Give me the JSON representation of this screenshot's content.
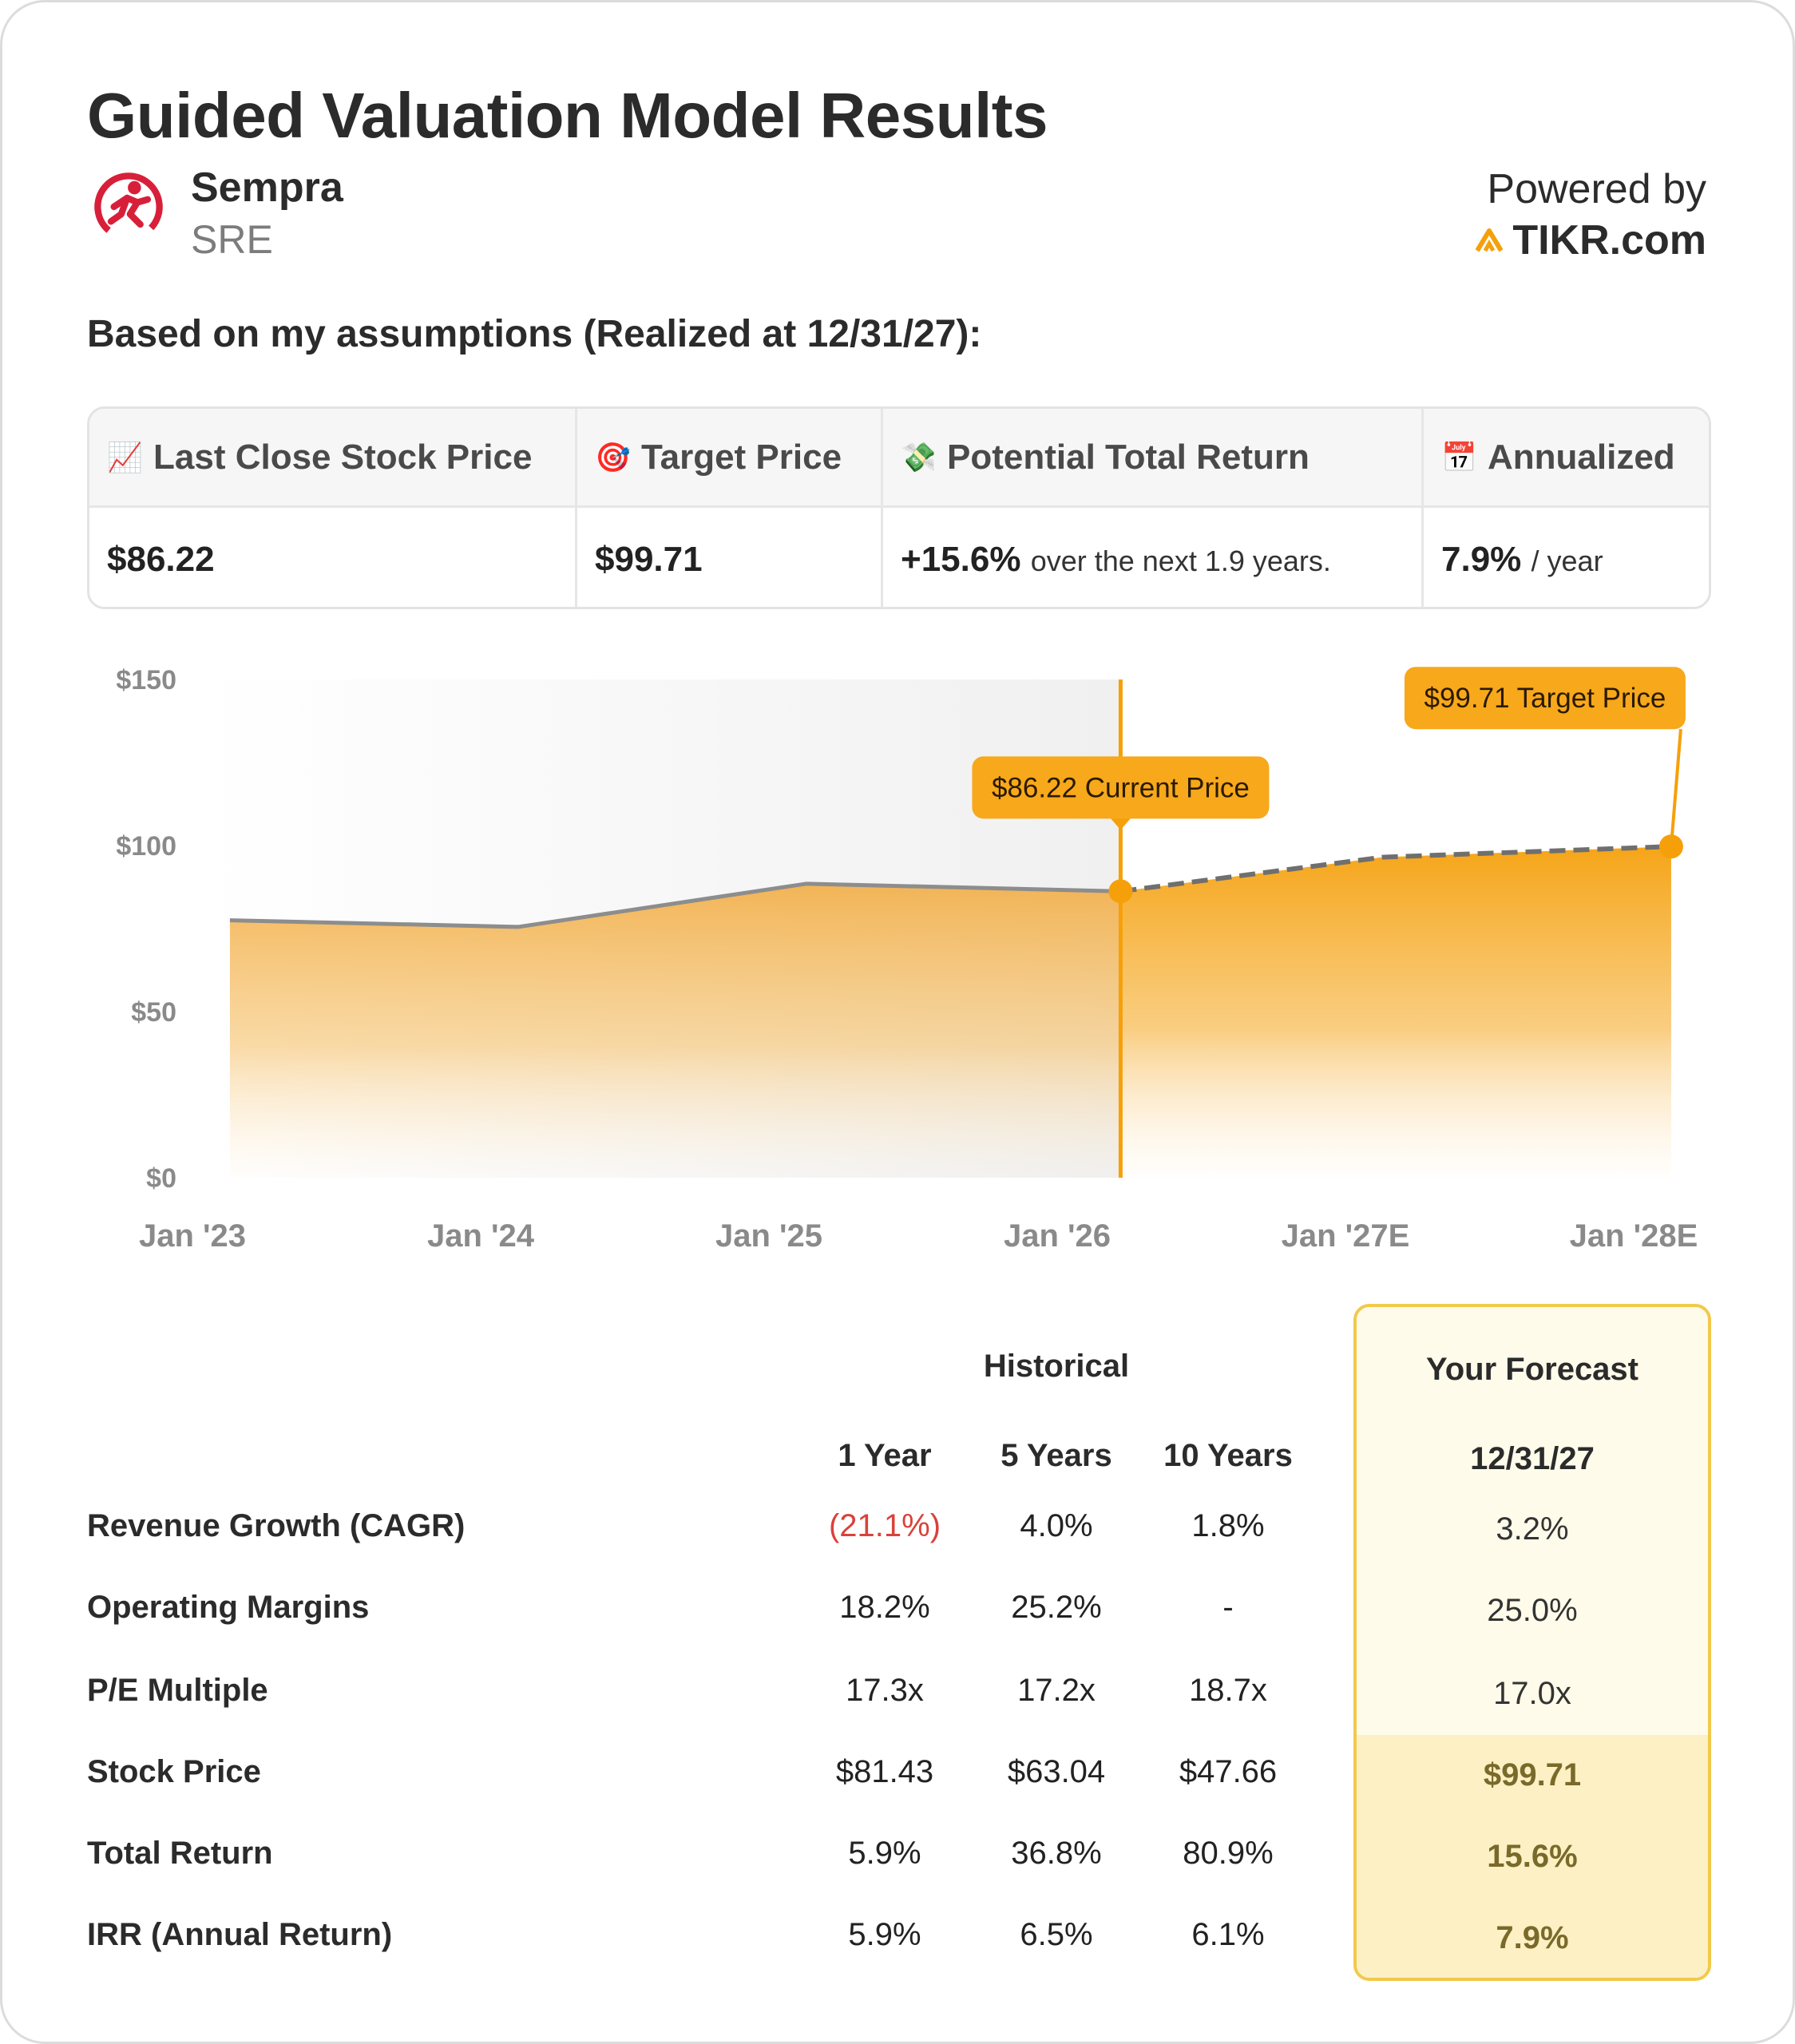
{
  "header": {
    "title": "Guided Valuation Model Results",
    "company_name": "Sempra",
    "ticker": "SRE",
    "powered_by": "Powered by",
    "brand": "TIKR.com",
    "subtitle": "Based on my assumptions (Realized at 12/31/27):"
  },
  "colors": {
    "accent": "#f5a00b",
    "logo_red": "#d81f3a",
    "forecast_border": "#f2c94c",
    "negative": "#d9423a"
  },
  "summary": {
    "columns": [
      {
        "icon": "📈",
        "icon_name": "chart-increasing-icon",
        "label": "Last Close Stock Price",
        "value": "$86.22",
        "suffix": ""
      },
      {
        "icon": "🎯",
        "icon_name": "target-icon",
        "label": "Target Price",
        "value": "$99.71",
        "suffix": ""
      },
      {
        "icon": "💸",
        "icon_name": "money-wings-icon",
        "label": "Potential Total Return",
        "value": "+15.6%",
        "suffix": "over the next 1.9 years."
      },
      {
        "icon": "📅",
        "icon_name": "calendar-icon",
        "label": "Annualized",
        "value": "7.9%",
        "suffix": "/ year"
      }
    ]
  },
  "chart_data": {
    "type": "area",
    "title": "",
    "x": [
      "Jan '23",
      "Jan '24",
      "Jan '25",
      "Jan '26",
      "Jan '27E",
      "Jan '28E"
    ],
    "ylim": [
      0,
      150
    ],
    "yticks": [
      "$0",
      "$50",
      "$100",
      "$150"
    ],
    "ytick_values": [
      0,
      50,
      100,
      150
    ],
    "series": [
      {
        "name": "Historical",
        "points": [
          [
            0.13,
            77.5
          ],
          [
            1.13,
            75.5
          ],
          [
            2.13,
            88.5
          ],
          [
            3.22,
            86.22
          ]
        ]
      },
      {
        "name": "Forecast",
        "points": [
          [
            3.22,
            86.22
          ],
          [
            4.13,
            96.5
          ],
          [
            5.13,
            99.71
          ]
        ]
      }
    ],
    "annotations": [
      {
        "label": "$86.22 Current Price",
        "x": 3.22,
        "y": 86.22
      },
      {
        "label": "$99.71 Target Price",
        "x": 5.13,
        "y": 99.71
      }
    ]
  },
  "metrics": {
    "historical_label": "Historical",
    "forecast_label": "Your Forecast",
    "col_headers": [
      "1 Year",
      "5 Years",
      "10 Years"
    ],
    "forecast_date": "12/31/27",
    "rows": [
      {
        "label": "Revenue Growth (CAGR)",
        "values": [
          "(21.1%)",
          "4.0%",
          "1.8%"
        ],
        "forecast": "3.2%"
      },
      {
        "label": "Operating Margins",
        "values": [
          "18.2%",
          "25.2%",
          "-"
        ],
        "forecast": "25.0%"
      },
      {
        "label": "P/E Multiple",
        "values": [
          "17.3x",
          "17.2x",
          "18.7x"
        ],
        "forecast": "17.0x"
      },
      {
        "label": "Stock Price",
        "values": [
          "$81.43",
          "$63.04",
          "$47.66"
        ],
        "forecast": "$99.71"
      },
      {
        "label": "Total Return",
        "values": [
          "5.9%",
          "36.8%",
          "80.9%"
        ],
        "forecast": "15.6%"
      },
      {
        "label": "IRR (Annual Return)",
        "values": [
          "5.9%",
          "6.5%",
          "6.1%"
        ],
        "forecast": "7.9%"
      }
    ]
  }
}
